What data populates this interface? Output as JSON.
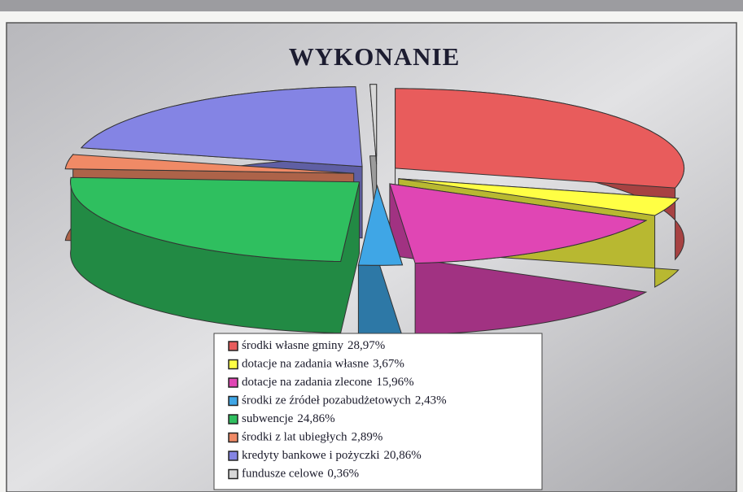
{
  "chart_data": {
    "type": "pie3d",
    "title": "WYKONANIE",
    "categories": [
      "środki własne gminy",
      "dotacje na zadania własne",
      "dotacje na zadania zlecone",
      "środki ze źródeł pozabudżetowych",
      "subwencje",
      "środki z lat ubiegłych",
      "kredyty bankowe i pożyczki",
      "fundusze celowe"
    ],
    "values": [
      28.97,
      3.67,
      15.96,
      2.43,
      24.86,
      2.89,
      20.86,
      0.36
    ],
    "value_labels": [
      "28,97%",
      "3,67%",
      "15,96%",
      "2,43%",
      "24,86%",
      "2,89%",
      "20,86%",
      "0,36%"
    ],
    "colors": [
      "#e85c5c",
      "#ffff44",
      "#e046b4",
      "#3fa6e6",
      "#2fbf5f",
      "#f08a66",
      "#8484e4",
      "#d8d8d8"
    ],
    "legend": "bottom"
  }
}
